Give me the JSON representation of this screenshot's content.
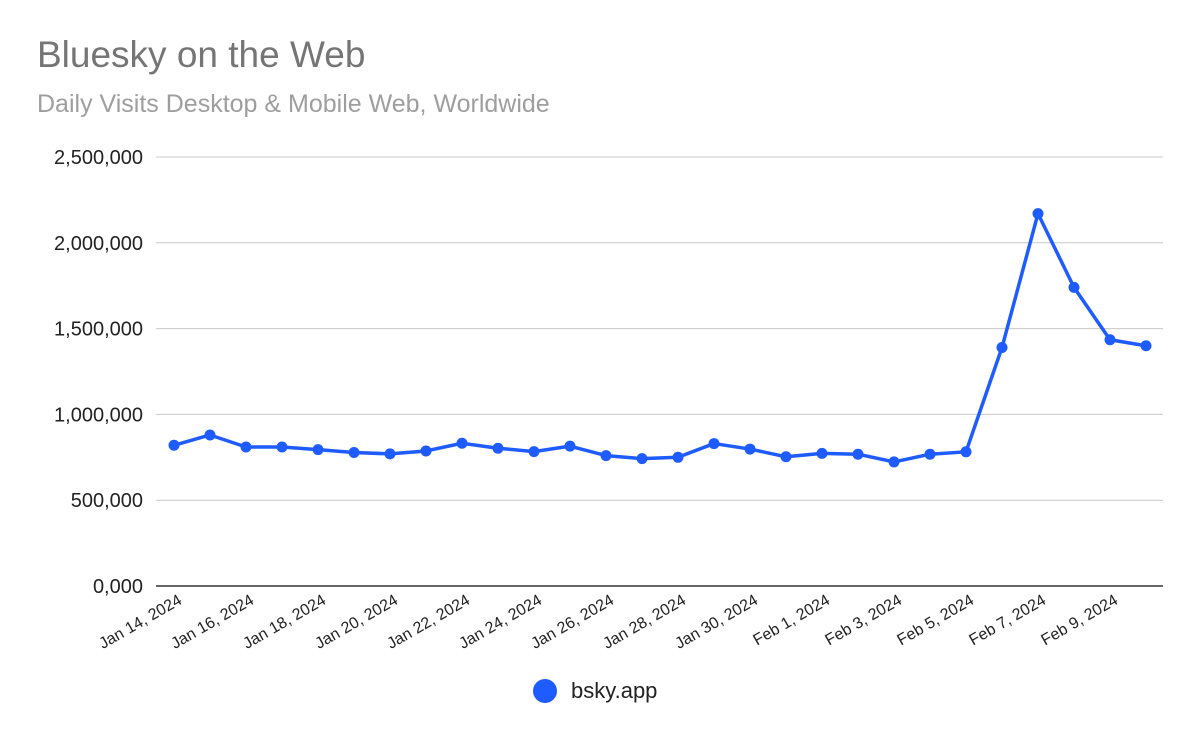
{
  "chart_data": {
    "type": "line",
    "title": "Bluesky on the Web",
    "subtitle": "Daily Visits Desktop & Mobile Web, Worldwide",
    "xlabel": "",
    "ylabel": "",
    "ylim": [
      0,
      2500000
    ],
    "y_ticks": [
      0,
      500000,
      1000000,
      1500000,
      2000000,
      2500000
    ],
    "y_tick_labels": [
      "0,000",
      "500,000",
      "1,000,000",
      "1,500,000",
      "2,000,000",
      "2,500,000"
    ],
    "x_tick_labels": [
      "Jan 14, 2024",
      "Jan 16, 2024",
      "Jan 18, 2024",
      "Jan 20, 2024",
      "Jan 22, 2024",
      "Jan 24, 2024",
      "Jan 26, 2024",
      "Jan 28, 2024",
      "Jan 30, 2024",
      "Feb 1, 2024",
      "Feb 3, 2024",
      "Feb 5, 2024",
      "Feb 7, 2024",
      "Feb 9, 2024"
    ],
    "x": [
      "2024-01-14",
      "2024-01-15",
      "2024-01-16",
      "2024-01-17",
      "2024-01-18",
      "2024-01-19",
      "2024-01-20",
      "2024-01-21",
      "2024-01-22",
      "2024-01-23",
      "2024-01-24",
      "2024-01-25",
      "2024-01-26",
      "2024-01-27",
      "2024-01-28",
      "2024-01-29",
      "2024-01-30",
      "2024-01-31",
      "2024-02-01",
      "2024-02-02",
      "2024-02-03",
      "2024-02-04",
      "2024-02-05",
      "2024-02-06",
      "2024-02-07",
      "2024-02-08",
      "2024-02-09",
      "2024-02-10"
    ],
    "series": [
      {
        "name": "bsky.app",
        "color": "#1f5cff",
        "values": [
          820000,
          880000,
          810000,
          810000,
          795000,
          778000,
          770000,
          787000,
          832000,
          803000,
          783000,
          815000,
          760000,
          742000,
          750000,
          830000,
          798000,
          753000,
          773000,
          768000,
          723000,
          768000,
          782000,
          1390000,
          2170000,
          1740000,
          1435000,
          1400000
        ]
      }
    ],
    "grid": true,
    "legend_position": "bottom"
  }
}
